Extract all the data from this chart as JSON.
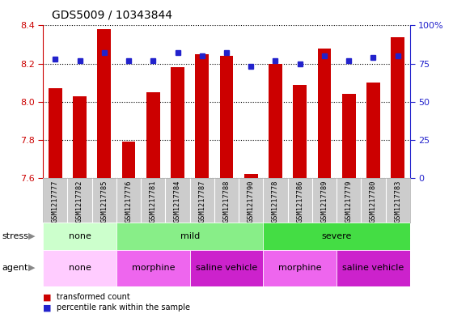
{
  "title": "GDS5009 / 10343844",
  "samples": [
    "GSM1217777",
    "GSM1217782",
    "GSM1217785",
    "GSM1217776",
    "GSM1217781",
    "GSM1217784",
    "GSM1217787",
    "GSM1217788",
    "GSM1217790",
    "GSM1217778",
    "GSM1217786",
    "GSM1217789",
    "GSM1217779",
    "GSM1217780",
    "GSM1217783"
  ],
  "transformed_count": [
    8.07,
    8.03,
    8.38,
    7.79,
    8.05,
    8.18,
    8.25,
    8.24,
    7.62,
    8.2,
    8.09,
    8.28,
    8.04,
    8.1,
    8.34
  ],
  "percentile_rank": [
    78,
    77,
    82,
    77,
    77,
    82,
    80,
    82,
    73,
    77,
    75,
    80,
    77,
    79,
    80
  ],
  "ylim_left": [
    7.6,
    8.4
  ],
  "ylim_right": [
    0,
    100
  ],
  "yticks_left": [
    7.6,
    7.8,
    8.0,
    8.2,
    8.4
  ],
  "yticks_right": [
    0,
    25,
    50,
    75,
    100
  ],
  "bar_color": "#cc0000",
  "dot_color": "#2222cc",
  "bar_bottom": 7.6,
  "stress_groups": [
    {
      "label": "none",
      "start": 0,
      "end": 3,
      "color": "#ccffcc"
    },
    {
      "label": "mild",
      "start": 3,
      "end": 9,
      "color": "#88ee88"
    },
    {
      "label": "severe",
      "start": 9,
      "end": 15,
      "color": "#44dd44"
    }
  ],
  "agent_groups": [
    {
      "label": "none",
      "start": 0,
      "end": 3,
      "color": "#ffccff"
    },
    {
      "label": "morphine",
      "start": 3,
      "end": 6,
      "color": "#ee66ee"
    },
    {
      "label": "saline vehicle",
      "start": 6,
      "end": 9,
      "color": "#cc22cc"
    },
    {
      "label": "morphine",
      "start": 9,
      "end": 12,
      "color": "#ee66ee"
    },
    {
      "label": "saline vehicle",
      "start": 12,
      "end": 15,
      "color": "#cc22cc"
    }
  ],
  "left_axis_color": "#cc0000",
  "right_axis_color": "#2222cc",
  "xtick_bg": "#cccccc",
  "bar_width": 0.55,
  "dot_size": 5
}
